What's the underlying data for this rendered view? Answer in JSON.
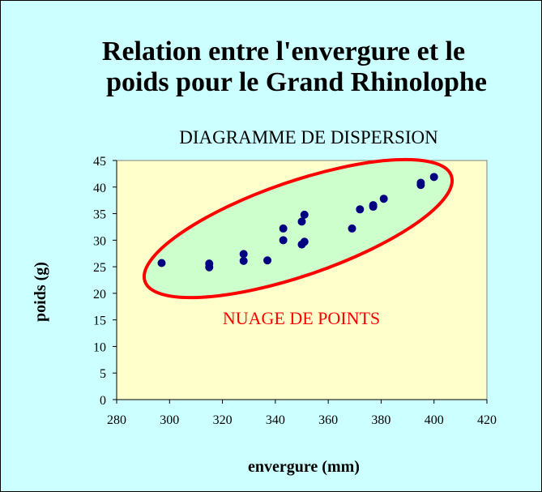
{
  "chart_data": {
    "type": "scatter",
    "title_line1": "Relation entre l'envergure et le",
    "title_line2": "poids pour le Grand Rhinolophe",
    "subtitle": "DIAGRAMME DE DISPERSION",
    "xlabel": "envergure (mm)",
    "ylabel": "poids (g)",
    "xlim": [
      280,
      420
    ],
    "ylim": [
      0,
      45
    ],
    "xticks": [
      "280",
      "300",
      "320",
      "340",
      "360",
      "380",
      "400",
      "420"
    ],
    "yticks": [
      "0",
      "5",
      "10",
      "15",
      "20",
      "25",
      "30",
      "35",
      "40",
      "45"
    ],
    "grid": false,
    "annotation": "NUAGE DE POINTS",
    "colors": {
      "plot_background": "#ffffcc",
      "page_background": "#ccffff",
      "points": "#000080",
      "ellipse_stroke": "#ff0000",
      "ellipse_fill": "#ccffcc",
      "annotation": "#ff0000"
    },
    "points": [
      {
        "x": 297,
        "y": 25.7
      },
      {
        "x": 315,
        "y": 25.6
      },
      {
        "x": 315,
        "y": 24.9
      },
      {
        "x": 328,
        "y": 27.4
      },
      {
        "x": 328,
        "y": 26.1
      },
      {
        "x": 337,
        "y": 26.2
      },
      {
        "x": 343,
        "y": 32.2
      },
      {
        "x": 343,
        "y": 30.0
      },
      {
        "x": 350,
        "y": 33.5
      },
      {
        "x": 350,
        "y": 29.2
      },
      {
        "x": 351,
        "y": 34.8
      },
      {
        "x": 351,
        "y": 29.7
      },
      {
        "x": 369,
        "y": 32.2
      },
      {
        "x": 372,
        "y": 35.8
      },
      {
        "x": 377,
        "y": 36.3
      },
      {
        "x": 377,
        "y": 36.6
      },
      {
        "x": 381,
        "y": 37.8
      },
      {
        "x": 395,
        "y": 40.4
      },
      {
        "x": 395,
        "y": 40.8
      },
      {
        "x": 400,
        "y": 41.9
      }
    ]
  }
}
